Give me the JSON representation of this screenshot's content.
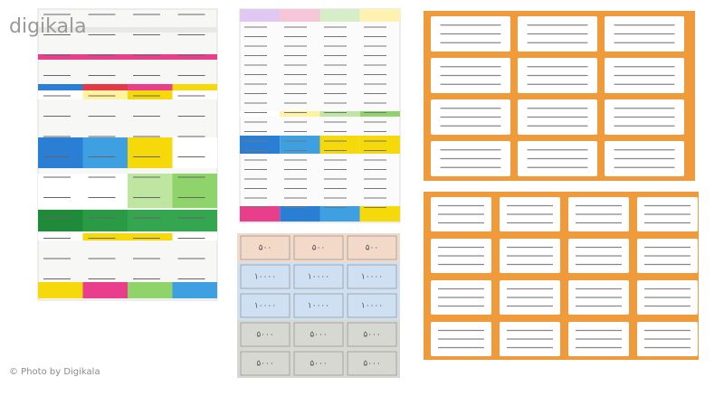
{
  "watermark": {
    "brand": "digikala",
    "credit": "© Photo by Digikala"
  },
  "money": {
    "rows": [
      "۵۰۰",
      "۱۰۰۰۰",
      "۱۰۰۰۰",
      "۵۰۰۰",
      "۵۰۰۰"
    ]
  }
}
